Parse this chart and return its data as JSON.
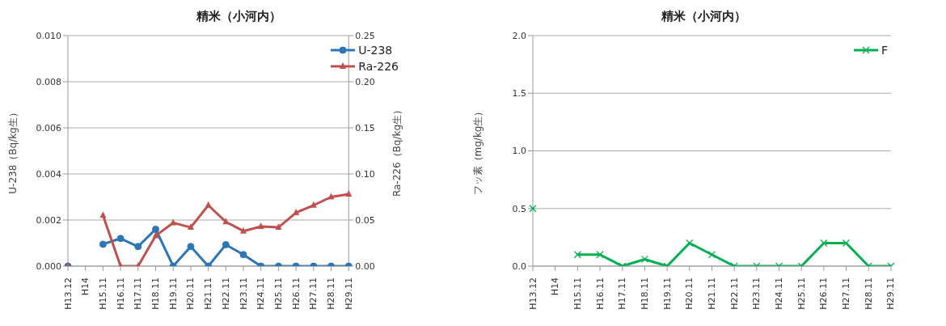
{
  "chart_data": [
    {
      "type": "line",
      "title": "精米（小河内）",
      "ylabel": "U-238（Bq/kg生）",
      "y2label": "Ra-226（Bq/kg生）",
      "categories": [
        "H13.12",
        "H14",
        "H15.11",
        "H16.11",
        "H17.11",
        "H18.11",
        "H19.11",
        "H20.11",
        "H21.11",
        "H22.11",
        "H23.11",
        "H24.11",
        "H25.11",
        "H26.11",
        "H27.11",
        "H28.11",
        "H29.11"
      ],
      "series": [
        {
          "name": "U-238",
          "color": "#2e75b6",
          "marker": "circle",
          "values": [
            0,
            null,
            0.00095,
            0.0012,
            0.00085,
            0.0016,
            0,
            0.00085,
            0,
            0.00093,
            0.0005,
            0,
            0,
            0,
            0,
            0,
            0
          ]
        },
        {
          "name": "Ra-226",
          "color": "#c0504d",
          "marker": "triangle",
          "axis": "y2",
          "values": [
            0,
            null,
            0.055,
            0,
            0,
            0.033,
            0.047,
            0.042,
            0.066,
            0.048,
            0.038,
            0.043,
            0.042,
            0.058,
            0.066,
            0.075,
            0.078
          ]
        }
      ],
      "ylim": [
        0,
        0.01
      ],
      "yticks": [
        {
          "value": 0,
          "label": "0.000"
        },
        {
          "value": 0.002,
          "label": "0.002"
        },
        {
          "value": 0.004,
          "label": "0.004"
        },
        {
          "value": 0.006,
          "label": "0.006"
        },
        {
          "value": 0.008,
          "label": "0.008"
        },
        {
          "value": 0.01,
          "label": "0.010"
        }
      ],
      "y2lim": [
        0,
        0.25
      ],
      "y2ticks": [
        {
          "value": 0,
          "label": "0.00"
        },
        {
          "value": 0.05,
          "label": "0.05"
        },
        {
          "value": 0.1,
          "label": "0.10"
        },
        {
          "value": 0.15,
          "label": "0.15"
        },
        {
          "value": 0.2,
          "label": "0.20"
        },
        {
          "value": 0.25,
          "label": "0.25"
        }
      ],
      "grid": "y",
      "legend": "top right"
    },
    {
      "type": "line",
      "title": "精米（小河内）",
      "ylabel": "フッ素（mg/kg生）",
      "categories": [
        "H13.12",
        "H14",
        "H15.11",
        "H16.11",
        "H17.11",
        "H18.11",
        "H19.11",
        "H20.11",
        "H21.11",
        "H22.11",
        "H23.11",
        "H24.11",
        "H25.11",
        "H26.11",
        "H27.11",
        "H28.11",
        "H29.11"
      ],
      "series": [
        {
          "name": "F",
          "color": "#00b050",
          "marker": "cross",
          "values": [
            0.5,
            null,
            0.1,
            0.1,
            0,
            0.06,
            0,
            0.2,
            0.1,
            0,
            0,
            0,
            0,
            0.2,
            0.2,
            0,
            0
          ]
        }
      ],
      "ylim": [
        0,
        2
      ],
      "yticks": [
        {
          "value": 0,
          "label": "0.0"
        },
        {
          "value": 0.5,
          "label": "0.5"
        },
        {
          "value": 1,
          "label": "1.0"
        },
        {
          "value": 1.5,
          "label": "1.5"
        },
        {
          "value": 2,
          "label": "2.0"
        }
      ],
      "grid": "y",
      "legend": "top right"
    }
  ]
}
